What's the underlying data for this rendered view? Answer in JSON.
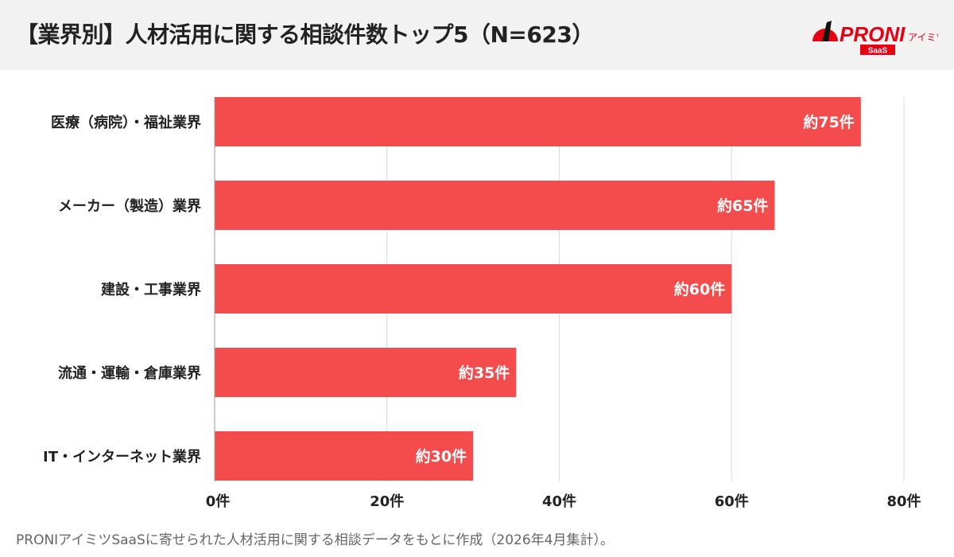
{
  "header": {
    "title": "【業界別】人材活用に関する相談件数トップ5（N=623）",
    "logo_text": "PRONI",
    "logo_sub": "アイミツ",
    "logo_badge": "SaaS"
  },
  "footer": {
    "note": "PRONIアイミツSaaSに寄せられた人材活用に関する相談データをもとに作成（2026年4月集計）。"
  },
  "colors": {
    "bar": "#f44c4c",
    "header_bg": "#f2f2f2",
    "grid": "#d9d9d9"
  },
  "chart_data": {
    "type": "bar",
    "orientation": "horizontal",
    "categories": [
      "医療（病院）・福祉業界",
      "メーカー（製造）業界",
      "建設・工事業界",
      "流通・運輸・倉庫業界",
      "IT・インターネット業界"
    ],
    "values": [
      75,
      65,
      60,
      35,
      30
    ],
    "data_labels": [
      "約75件",
      "約65件",
      "約60件",
      "約35件",
      "約30件"
    ],
    "xlim": [
      0,
      80
    ],
    "ticks": [
      0,
      20,
      40,
      60,
      80
    ],
    "tick_labels": [
      "0件",
      "20件",
      "40件",
      "60件",
      "80件"
    ],
    "grid": true
  }
}
